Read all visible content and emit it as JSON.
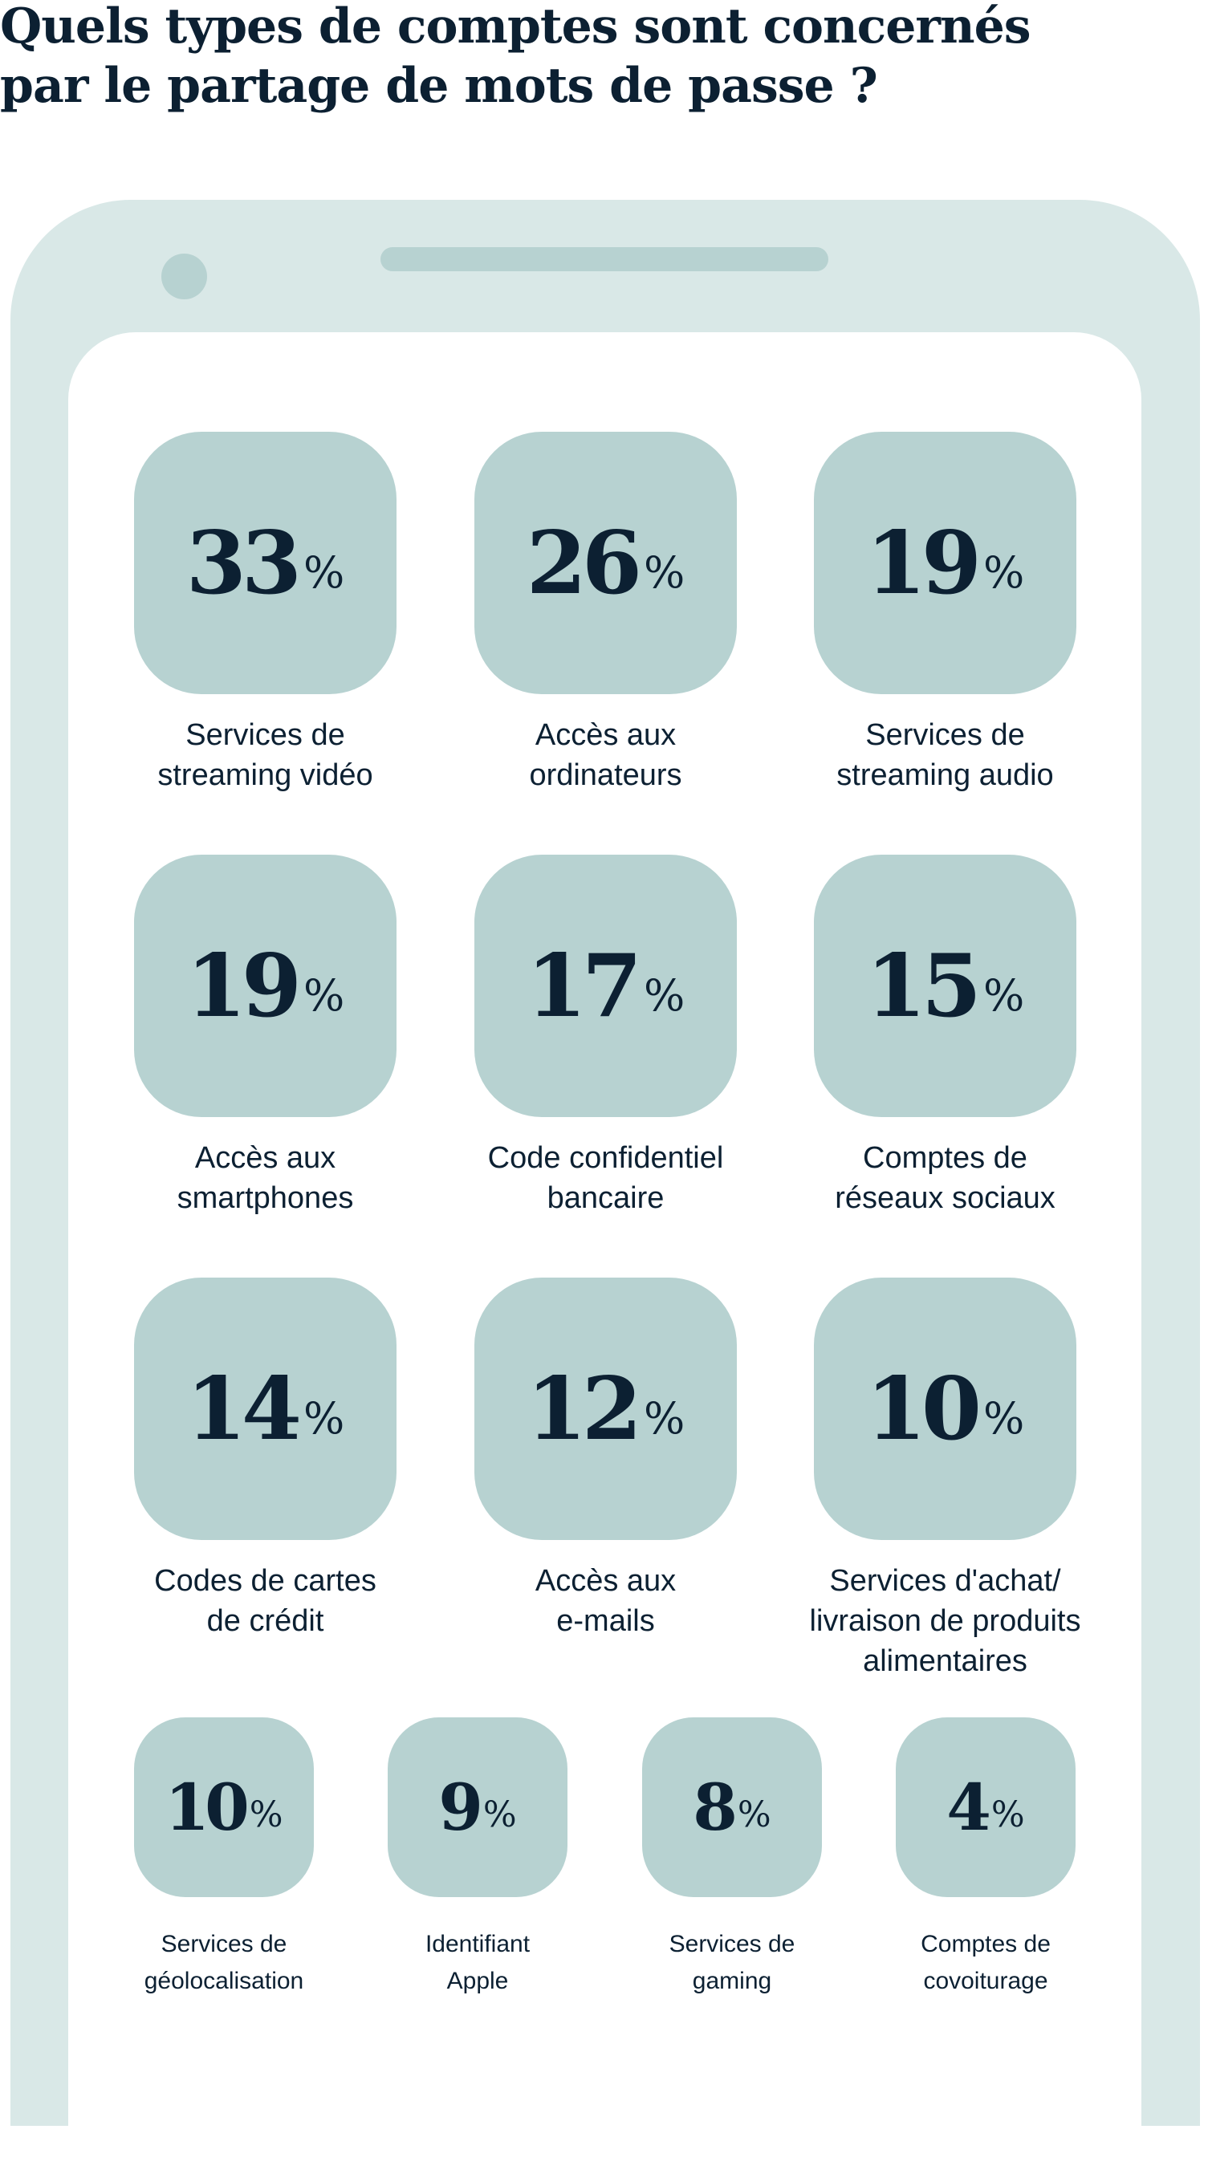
{
  "title": {
    "line1": "Quels types de comptes sont concernés",
    "line2": "par le partage de mots de passe ?"
  },
  "colors": {
    "frame": "#d9e8e7",
    "tile": "#b7d2d1",
    "text": "#0c2032"
  },
  "chart_data": {
    "type": "table",
    "unit": "%",
    "items": [
      {
        "value": "33",
        "unit": "%",
        "label": [
          "Services de",
          "streaming vidéo"
        ]
      },
      {
        "value": "26",
        "unit": "%",
        "label": [
          "Accès aux",
          "ordinateurs"
        ]
      },
      {
        "value": "19",
        "unit": "%",
        "label": [
          "Services de",
          "streaming audio"
        ]
      },
      {
        "value": "19",
        "unit": "%",
        "label": [
          "Accès aux",
          "smartphones"
        ]
      },
      {
        "value": "17",
        "unit": "%",
        "label": [
          "Code confidentiel",
          "bancaire"
        ]
      },
      {
        "value": "15",
        "unit": "%",
        "label": [
          "Comptes de",
          "réseaux sociaux"
        ]
      },
      {
        "value": "14",
        "unit": "%",
        "label": [
          "Codes de cartes",
          "de crédit"
        ]
      },
      {
        "value": "12",
        "unit": "%",
        "label": [
          "Accès aux",
          "e-mails"
        ]
      },
      {
        "value": "10",
        "unit": "%",
        "label": [
          "Services d'achat/",
          "livraison de produits",
          "alimentaires"
        ]
      },
      {
        "value": "10",
        "unit": "%",
        "label": [
          "Services de",
          "géolocalisation"
        ]
      },
      {
        "value": "9",
        "unit": "%",
        "label": [
          "Identifiant",
          "Apple"
        ]
      },
      {
        "value": "8",
        "unit": "%",
        "label": [
          "Services de",
          "gaming"
        ]
      },
      {
        "value": "4",
        "unit": "%",
        "label": [
          "Comptes de",
          "covoiturage"
        ]
      }
    ]
  }
}
